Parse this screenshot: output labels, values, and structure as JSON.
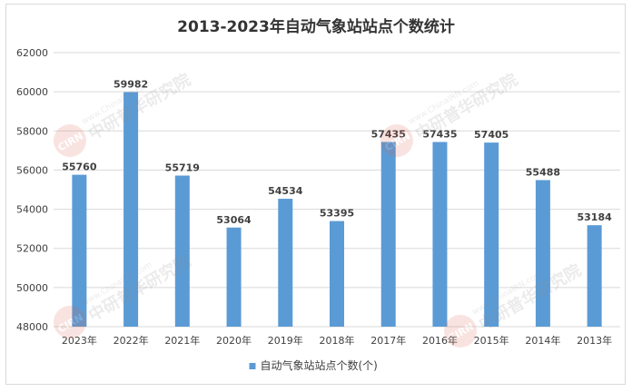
{
  "chart_data": {
    "type": "bar",
    "title": "2013-2023年自动气象站站点个数统计",
    "xlabel": "",
    "ylabel": "",
    "categories": [
      "2023年",
      "2022年",
      "2021年",
      "2020年",
      "2019年",
      "2018年",
      "2017年",
      "2016年",
      "2015年",
      "2014年",
      "2013年"
    ],
    "series": [
      {
        "name": "自动气象站站点个数(个)",
        "values": [
          55760,
          59982,
          55719,
          53064,
          54534,
          53395,
          57435,
          57435,
          57405,
          55488,
          53184
        ],
        "color": "#5b9bd5"
      }
    ],
    "ylim": [
      48000,
      62000
    ],
    "yticks": [
      48000,
      50000,
      52000,
      54000,
      56000,
      58000,
      60000,
      62000
    ],
    "grid": true,
    "legend_position": "bottom",
    "data_labels": true
  },
  "watermark": {
    "text": "中研普华研究院",
    "subtext": "www.ChinaIRN.com",
    "logo": "CIRN"
  }
}
